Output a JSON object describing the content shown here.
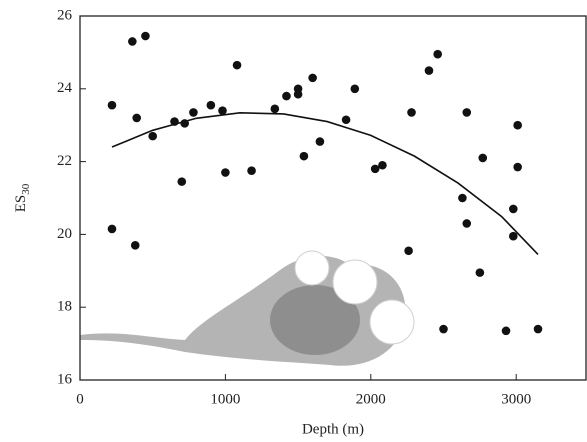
{
  "chart_data": {
    "type": "scatter",
    "xlabel": "Depth (m)",
    "ylabel": {
      "main": "ES",
      "sub": "30"
    },
    "xlim": [
      0,
      3480
    ],
    "ylim": [
      16,
      26
    ],
    "xticks": [
      0,
      1000,
      2000,
      3000
    ],
    "yticks": [
      16,
      18,
      20,
      22,
      24,
      26
    ],
    "color": "#111111",
    "x": [
      220,
      220,
      360,
      380,
      390,
      450,
      500,
      650,
      700,
      720,
      780,
      900,
      980,
      1000,
      1080,
      1180,
      1340,
      1420,
      1500,
      1500,
      1540,
      1600,
      1650,
      1830,
      1890,
      2030,
      2080,
      2260,
      2280,
      2400,
      2460,
      2500,
      2630,
      2660,
      2660,
      2750,
      2770,
      2930,
      2980,
      2980,
      3010,
      3010,
      3150
    ],
    "values": [
      23.55,
      20.15,
      25.3,
      19.7,
      23.2,
      25.45,
      22.7,
      23.1,
      21.45,
      23.05,
      23.35,
      23.55,
      23.4,
      21.7,
      24.65,
      21.75,
      23.45,
      23.8,
      23.85,
      24.0,
      22.15,
      24.3,
      22.55,
      23.15,
      24.0,
      21.8,
      21.9,
      19.55,
      23.35,
      24.5,
      24.95,
      17.4,
      21.0,
      23.35,
      20.3,
      18.95,
      22.1,
      17.35,
      19.95,
      20.7,
      21.85,
      23.0,
      17.4
    ],
    "fit": {
      "x": [
        220,
        500,
        800,
        1100,
        1400,
        1700,
        2000,
        2300,
        2600,
        2900,
        3150
      ],
      "values": [
        22.4,
        22.86,
        23.19,
        23.34,
        23.31,
        23.1,
        22.72,
        22.15,
        21.41,
        20.49,
        19.45
      ]
    }
  }
}
